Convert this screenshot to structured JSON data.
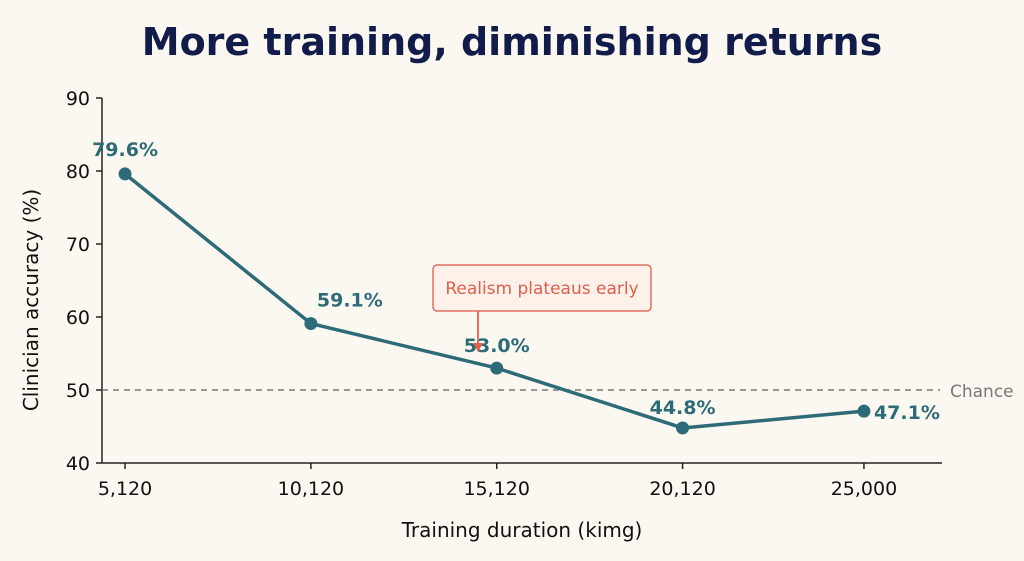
{
  "colors": {
    "background": "#fbf8f1",
    "title": "#111c4a",
    "series": "#2e6b78",
    "reference": "#777777",
    "annotation_text": "#e0604a",
    "annotation_border": "#e07060",
    "annotation_fill": "#fdf1ea"
  },
  "chart_data": {
    "type": "line",
    "title": "More training, diminishing returns",
    "xlabel": "Training duration (kimg)",
    "ylabel": "Clinician accuracy (%)",
    "categories": [
      "5,120",
      "10,120",
      "15,120",
      "20,120",
      "25,000"
    ],
    "x": [
      5120,
      10120,
      15120,
      20120,
      25000
    ],
    "ylim": [
      40,
      90
    ],
    "yticks": [
      40,
      50,
      60,
      70,
      80,
      90
    ],
    "series": [
      {
        "values": [
          79.6,
          59.1,
          53.0,
          44.8,
          47.1
        ],
        "labels": [
          "79.6%",
          "59.1%",
          "53.0%",
          "44.8%",
          "47.1%"
        ]
      }
    ],
    "reference_line": {
      "value": 50,
      "label": "Chance",
      "style": "dashed"
    },
    "annotation": {
      "text": "Realism plateaus early",
      "x": 14000,
      "y": 53.5
    },
    "grid": false,
    "legend": "none"
  }
}
